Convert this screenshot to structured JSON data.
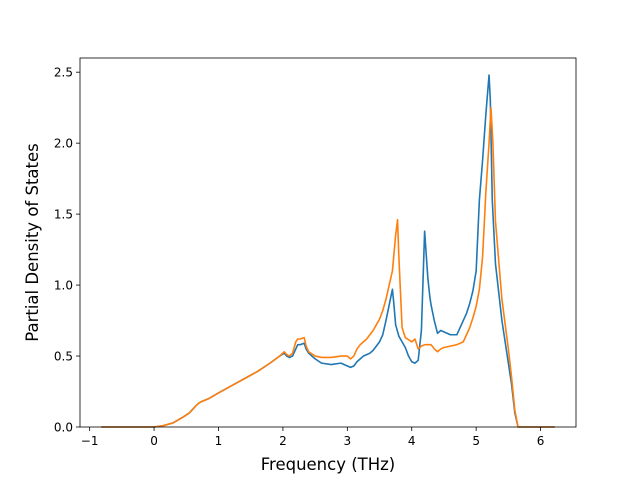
{
  "chart_data": {
    "type": "line",
    "title": "",
    "xlabel": "Frequency (THz)",
    "ylabel": "Partial Density of States",
    "xlim": [
      -1.15,
      6.55
    ],
    "ylim": [
      0.0,
      2.6
    ],
    "xticks": [
      -1,
      0,
      1,
      2,
      3,
      4,
      5,
      6
    ],
    "xtick_labels": [
      "−1",
      "0",
      "1",
      "2",
      "3",
      "4",
      "5",
      "6"
    ],
    "yticks": [
      0.0,
      0.5,
      1.0,
      1.5,
      2.0,
      2.5
    ],
    "ytick_labels": [
      "0.0",
      "0.5",
      "1.0",
      "1.5",
      "2.0",
      "2.5"
    ],
    "grid": false,
    "colors": [
      "#1f77b4",
      "#ff7f0e"
    ],
    "series": [
      {
        "x": [
          -0.82,
          -0.3,
          0.0,
          0.15,
          0.3,
          0.45,
          0.55,
          0.65,
          0.7,
          0.74,
          0.85,
          1.0,
          1.2,
          1.4,
          1.6,
          1.8,
          1.95,
          2.02,
          2.06,
          2.1,
          2.15,
          2.2,
          2.23,
          2.27,
          2.33,
          2.36,
          2.4,
          2.5,
          2.6,
          2.75,
          2.9,
          3.0,
          3.05,
          3.1,
          3.15,
          3.2,
          3.25,
          3.3,
          3.35,
          3.4,
          3.45,
          3.5,
          3.55,
          3.6,
          3.65,
          3.7,
          3.72,
          3.75,
          3.8,
          3.85,
          3.9,
          3.95,
          4.0,
          4.05,
          4.1,
          4.15,
          4.2,
          4.25,
          4.28,
          4.3,
          4.35,
          4.4,
          4.45,
          4.5,
          4.6,
          4.7,
          4.75,
          4.8,
          4.85,
          4.9,
          4.95,
          5.0,
          5.05,
          5.1,
          5.15,
          5.2,
          5.22,
          5.25,
          5.3,
          5.4,
          5.5,
          5.55,
          5.6,
          5.65,
          5.7,
          6.0,
          6.22
        ],
        "y": [
          0.0,
          0.0,
          0.0,
          0.01,
          0.03,
          0.07,
          0.1,
          0.15,
          0.17,
          0.18,
          0.2,
          0.24,
          0.29,
          0.34,
          0.39,
          0.45,
          0.5,
          0.52,
          0.5,
          0.49,
          0.5,
          0.55,
          0.58,
          0.58,
          0.59,
          0.55,
          0.52,
          0.48,
          0.45,
          0.44,
          0.45,
          0.43,
          0.42,
          0.43,
          0.46,
          0.48,
          0.5,
          0.51,
          0.52,
          0.54,
          0.57,
          0.6,
          0.65,
          0.75,
          0.86,
          0.97,
          0.88,
          0.72,
          0.64,
          0.6,
          0.56,
          0.5,
          0.46,
          0.45,
          0.47,
          0.68,
          1.38,
          1.05,
          0.92,
          0.86,
          0.75,
          0.66,
          0.68,
          0.67,
          0.65,
          0.65,
          0.7,
          0.75,
          0.8,
          0.87,
          0.96,
          1.1,
          1.6,
          1.88,
          2.2,
          2.48,
          2.3,
          1.6,
          1.15,
          0.75,
          0.45,
          0.3,
          0.1,
          0.0,
          0.0,
          0.0,
          0.0
        ]
      },
      {
        "x": [
          -0.82,
          -0.3,
          0.0,
          0.15,
          0.3,
          0.45,
          0.55,
          0.65,
          0.7,
          0.74,
          0.85,
          1.0,
          1.2,
          1.4,
          1.6,
          1.8,
          1.95,
          2.02,
          2.06,
          2.1,
          2.15,
          2.2,
          2.23,
          2.27,
          2.33,
          2.36,
          2.4,
          2.5,
          2.6,
          2.75,
          2.9,
          3.0,
          3.05,
          3.1,
          3.15,
          3.2,
          3.25,
          3.3,
          3.35,
          3.4,
          3.45,
          3.5,
          3.55,
          3.6,
          3.65,
          3.7,
          3.75,
          3.78,
          3.8,
          3.85,
          3.9,
          4.0,
          4.05,
          4.1,
          4.15,
          4.2,
          4.3,
          4.35,
          4.4,
          4.45,
          4.5,
          4.6,
          4.7,
          4.8,
          4.85,
          4.9,
          4.95,
          5.0,
          5.05,
          5.1,
          5.15,
          5.2,
          5.23,
          5.26,
          5.3,
          5.4,
          5.5,
          5.55,
          5.6,
          5.65,
          5.7,
          6.0,
          6.22
        ],
        "y": [
          0.0,
          0.0,
          0.0,
          0.01,
          0.03,
          0.07,
          0.1,
          0.15,
          0.17,
          0.18,
          0.2,
          0.24,
          0.29,
          0.34,
          0.39,
          0.45,
          0.5,
          0.53,
          0.51,
          0.5,
          0.52,
          0.6,
          0.62,
          0.62,
          0.63,
          0.57,
          0.53,
          0.5,
          0.49,
          0.49,
          0.5,
          0.5,
          0.48,
          0.5,
          0.55,
          0.58,
          0.6,
          0.62,
          0.65,
          0.68,
          0.72,
          0.76,
          0.82,
          0.9,
          1.0,
          1.1,
          1.35,
          1.46,
          1.2,
          0.7,
          0.63,
          0.6,
          0.62,
          0.55,
          0.57,
          0.58,
          0.58,
          0.55,
          0.53,
          0.55,
          0.56,
          0.57,
          0.58,
          0.6,
          0.65,
          0.7,
          0.77,
          0.85,
          0.97,
          1.2,
          1.65,
          2.0,
          2.25,
          2.0,
          1.45,
          0.9,
          0.55,
          0.35,
          0.12,
          0.0,
          0.0,
          0.0,
          0.0
        ]
      }
    ]
  }
}
